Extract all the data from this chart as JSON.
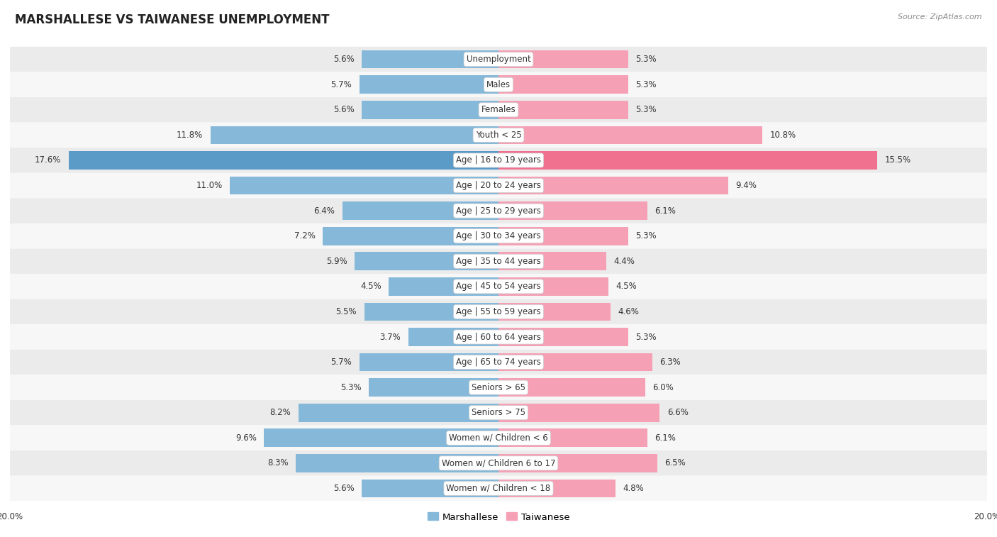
{
  "title": "MARSHALLESE VS TAIWANESE UNEMPLOYMENT",
  "source": "Source: ZipAtlas.com",
  "categories": [
    "Unemployment",
    "Males",
    "Females",
    "Youth < 25",
    "Age | 16 to 19 years",
    "Age | 20 to 24 years",
    "Age | 25 to 29 years",
    "Age | 30 to 34 years",
    "Age | 35 to 44 years",
    "Age | 45 to 54 years",
    "Age | 55 to 59 years",
    "Age | 60 to 64 years",
    "Age | 65 to 74 years",
    "Seniors > 65",
    "Seniors > 75",
    "Women w/ Children < 6",
    "Women w/ Children 6 to 17",
    "Women w/ Children < 18"
  ],
  "marshallese": [
    5.6,
    5.7,
    5.6,
    11.8,
    17.6,
    11.0,
    6.4,
    7.2,
    5.9,
    4.5,
    5.5,
    3.7,
    5.7,
    5.3,
    8.2,
    9.6,
    8.3,
    5.6
  ],
  "taiwanese": [
    5.3,
    5.3,
    5.3,
    10.8,
    15.5,
    9.4,
    6.1,
    5.3,
    4.4,
    4.5,
    4.6,
    5.3,
    6.3,
    6.0,
    6.6,
    6.1,
    6.5,
    4.8
  ],
  "max_value": 20.0,
  "bar_color_marshallese": "#85b8d9",
  "bar_color_taiwanese": "#f5a0b5",
  "bar_color_marshallese_highlight": "#5b9bc8",
  "bar_color_taiwanese_highlight": "#f07090",
  "row_bg_odd": "#ebebeb",
  "row_bg_even": "#f7f7f7",
  "label_color": "#333333",
  "value_color": "#333333",
  "title_fontsize": 12,
  "label_fontsize": 8.5,
  "value_fontsize": 8.5,
  "legend_fontsize": 9.5,
  "source_fontsize": 8
}
